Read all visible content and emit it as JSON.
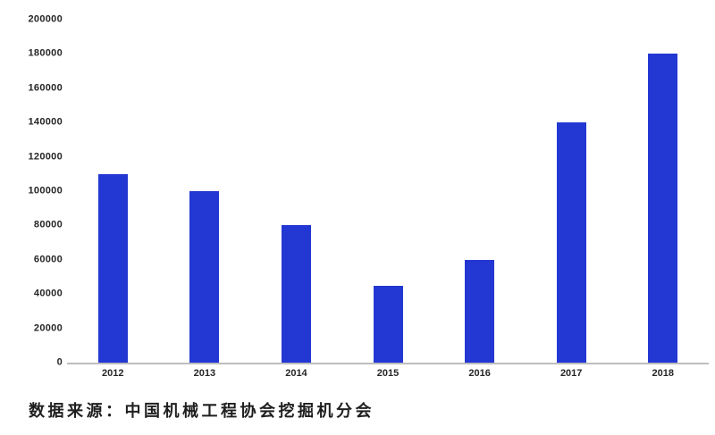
{
  "chart_data": {
    "type": "bar",
    "title": "",
    "categories": [
      "2012",
      "2013",
      "2014",
      "2015",
      "2016",
      "2017",
      "2018"
    ],
    "values": [
      110000,
      100000,
      80000,
      45000,
      60000,
      140000,
      180000
    ],
    "xlabel": "",
    "ylabel": "",
    "ylim": [
      0,
      200000
    ],
    "y_ticks": [
      0,
      20000,
      40000,
      60000,
      80000,
      100000,
      120000,
      140000,
      160000,
      180000,
      200000
    ],
    "grid": false,
    "legend": false,
    "bar_color": "#2338d2",
    "axis_line_color": "#bdbdbd",
    "tick_label_color": "#262626"
  },
  "caption": {
    "text": "数据来源：中国机械工程协会挖掘机分会"
  }
}
